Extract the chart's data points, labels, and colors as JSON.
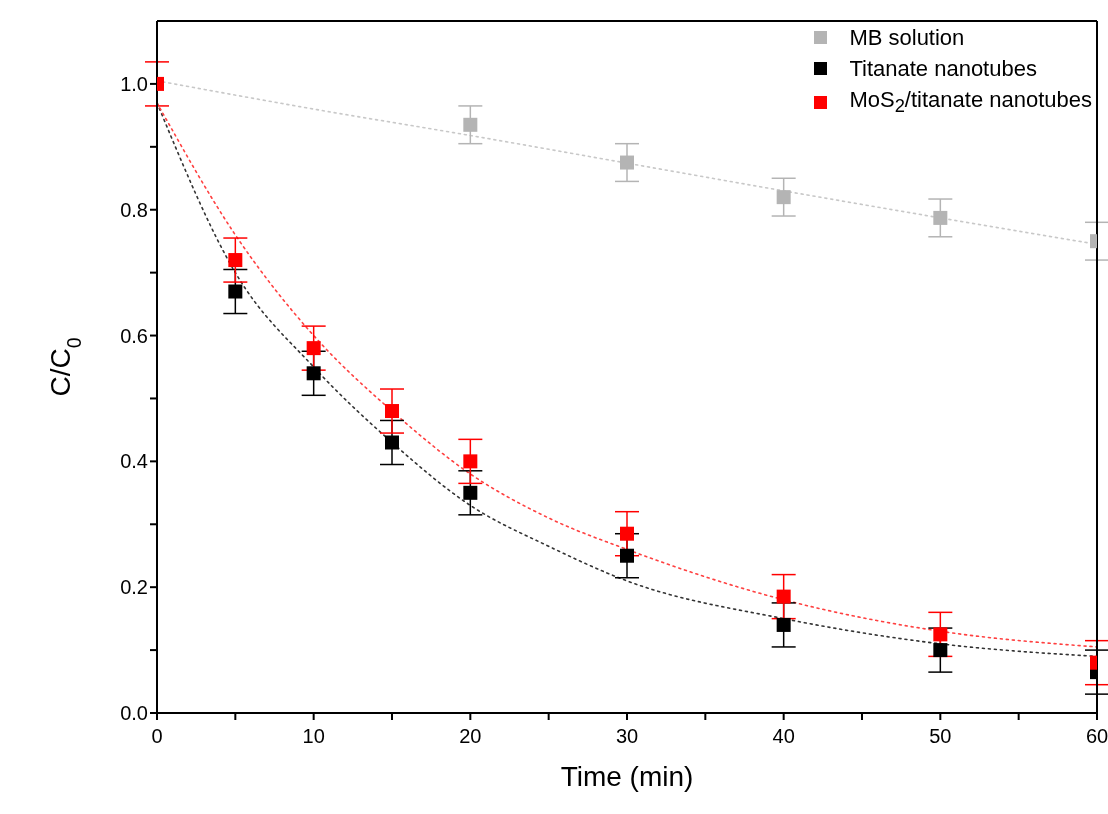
{
  "chart_data": {
    "type": "scatter",
    "xlabel": "Time (min)",
    "ylabel": "C/C$_{0}$",
    "xlim": [
      0,
      60
    ],
    "xticks": [
      0,
      {
        "value": 5,
        "label": null
      },
      10,
      {
        "value": 15,
        "label": null
      },
      20,
      {
        "value": 25,
        "label": null
      },
      30,
      {
        "value": 35,
        "label": null
      },
      40,
      {
        "value": 45,
        "label": null
      },
      50,
      {
        "value": 55,
        "label": null
      },
      60
    ],
    "ylim": [
      0,
      1.1
    ],
    "yticks": [
      {
        "value": 0,
        "label": "0.0"
      },
      {
        "value": 0.1,
        "label": null
      },
      {
        "value": 0.2,
        "label": "0.2"
      },
      {
        "value": 0.3,
        "label": null
      },
      {
        "value": 0.4,
        "label": "0.4"
      },
      {
        "value": 0.5,
        "label": null
      },
      {
        "value": 0.6,
        "label": "0.6"
      },
      {
        "value": 0.7,
        "label": null
      },
      {
        "value": 0.8,
        "label": "0.8"
      },
      {
        "value": 0.9,
        "label": null
      },
      {
        "value": 1.0,
        "label": "1.0"
      }
    ],
    "marker": "square",
    "legend": "top right",
    "series": [
      {
        "name": "MB solution",
        "color": "#b4b4b4",
        "x": [
          20,
          30,
          40,
          50,
          60
        ],
        "values": [
          0.935,
          0.875,
          0.82,
          0.787,
          0.75
        ],
        "errors": [
          0.03,
          0.03,
          0.03,
          0.03,
          0.03
        ]
      },
      {
        "name": "Titanate nanotubes",
        "color": "#000000",
        "x": [
          5,
          10,
          15,
          20,
          30,
          40,
          50,
          60
        ],
        "values": [
          0.67,
          0.54,
          0.43,
          0.35,
          0.25,
          0.14,
          0.1,
          0.065
        ],
        "errors": [
          0.035,
          0.035,
          0.035,
          0.035,
          0.035,
          0.035,
          0.035,
          0.035
        ]
      },
      {
        "name": "MoS$_{2}$/titanate nanotubes",
        "color": "#ff0000",
        "x": [
          0,
          5,
          10,
          15,
          20,
          30,
          40,
          50,
          60
        ],
        "values": [
          1.0,
          0.72,
          0.58,
          0.48,
          0.4,
          0.285,
          0.185,
          0.125,
          0.08
        ],
        "errors": [
          0.035,
          0.035,
          0.035,
          0.035,
          0.035,
          0.035,
          0.035,
          0.035,
          0.035
        ]
      },
      {
        "type": "line",
        "marker": "none",
        "color": "#c8c8c8",
        "line_style": "dotted",
        "x": [
          0,
          10,
          20,
          30,
          40,
          50,
          60
        ],
        "values": [
          1.005,
          0.96,
          0.918,
          0.874,
          0.83,
          0.787,
          0.745
        ]
      },
      {
        "type": "line",
        "marker": "none",
        "color": "#333333",
        "line_style": "dotted",
        "x": [
          0,
          5,
          10,
          15,
          20,
          25,
          30,
          40,
          50,
          60
        ],
        "values": [
          0.97,
          0.7,
          0.55,
          0.43,
          0.33,
          0.265,
          0.21,
          0.15,
          0.11,
          0.09
        ]
      },
      {
        "type": "line",
        "marker": "none",
        "color": "#ff4040",
        "line_style": "dotted",
        "x": [
          0,
          5,
          10,
          15,
          20,
          25,
          30,
          40,
          50,
          60
        ],
        "values": [
          0.97,
          0.76,
          0.6,
          0.48,
          0.38,
          0.31,
          0.26,
          0.18,
          0.13,
          0.105
        ]
      }
    ]
  }
}
